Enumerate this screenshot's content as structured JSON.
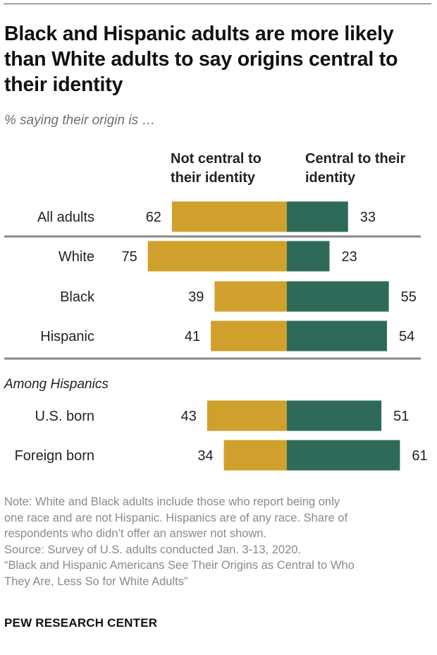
{
  "title": "Black and Hispanic adults are more likely than White adults to say origins central to their identity",
  "subtitle": "% saying their origin is …",
  "colors": {
    "not_central": "#CFA02B",
    "central": "#2E6A5A",
    "rule": "#888888"
  },
  "chart_data": {
    "type": "bar",
    "orientation": "horizontal-diverging",
    "unit": "%",
    "series": [
      {
        "name": "Not central to their identity",
        "values": [
          62,
          75,
          39,
          41,
          43,
          34
        ]
      },
      {
        "name": "Central to their identity",
        "values": [
          33,
          23,
          55,
          54,
          51,
          61
        ]
      }
    ],
    "rows": [
      {
        "label": "All adults",
        "not_central": 62,
        "central": 33
      },
      {
        "label": "White",
        "not_central": 75,
        "central": 23
      },
      {
        "label": "Black",
        "not_central": 39,
        "central": 55
      },
      {
        "label": "Hispanic",
        "not_central": 41,
        "central": 54
      },
      {
        "label": "U.S. born",
        "not_central": 43,
        "central": 51,
        "group": "Among Hispanics"
      },
      {
        "label": "Foreign born",
        "not_central": 34,
        "central": 61,
        "group": "Among Hispanics"
      }
    ],
    "legend": {
      "left": "Not central to their identity",
      "right": "Central to their identity"
    },
    "section_label": "Among Hispanics"
  },
  "notes": [
    "Note: White and Black adults include those who report being only",
    "one race and are not Hispanic. Hispanics are of any race. Share of",
    "respondents who didn’t offer an answer not shown.",
    "Source: Survey of U.S. adults conducted Jan. 3-13, 2020.",
    "“Black and Hispanic Americans See Their Origins as Central to Who",
    "They Are, Less So for White Adults”"
  ],
  "brand": "PEW RESEARCH CENTER"
}
